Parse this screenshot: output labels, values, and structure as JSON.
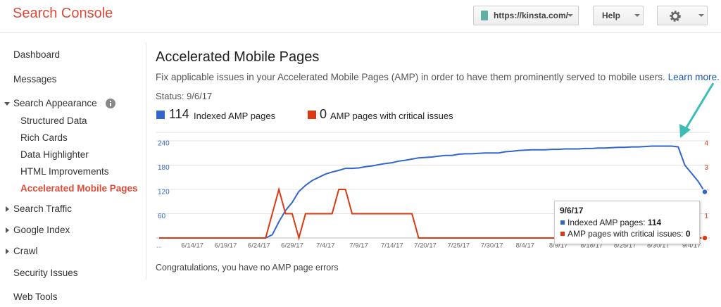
{
  "header": {
    "title": "Search Console",
    "site": "https://kinsta.com/",
    "help": "Help"
  },
  "sidebar": {
    "top": [
      "Dashboard",
      "Messages"
    ],
    "section": {
      "label": "Search Appearance",
      "items": [
        "Structured Data",
        "Rich Cards",
        "Data Highlighter",
        "HTML Improvements",
        "Accelerated Mobile Pages"
      ]
    },
    "groups": [
      "Search Traffic",
      "Google Index",
      "Crawl"
    ],
    "bottom": [
      "Security Issues",
      "Web Tools"
    ]
  },
  "main": {
    "title": "Accelerated Mobile Pages",
    "description": "Fix applicable issues in your Accelerated Mobile Pages (AMP) in order to have them prominently served to mobile users.",
    "link": "Learn more.",
    "status": "Status: 9/6/17",
    "message": "Congratulations, you have no AMP page errors"
  },
  "chart_data": {
    "type": "line",
    "categories": [
      "...",
      null,
      null,
      null,
      null,
      "6/14/17",
      null,
      null,
      null,
      null,
      "6/19/17",
      null,
      null,
      null,
      null,
      "6/24/17",
      null,
      null,
      null,
      null,
      "6/29/17",
      null,
      null,
      null,
      null,
      "7/4/17",
      null,
      null,
      null,
      null,
      "7/9/17",
      null,
      null,
      null,
      null,
      "7/14/17",
      null,
      null,
      null,
      null,
      "7/20/17",
      null,
      null,
      null,
      null,
      "7/25/17",
      null,
      null,
      null,
      null,
      "7/30/17",
      null,
      null,
      null,
      null,
      "8/4/17",
      null,
      null,
      null,
      null,
      "8/9/17",
      null,
      null,
      null,
      null,
      "8/18/17",
      null,
      null,
      null,
      null,
      "8/25/17",
      null,
      null,
      null,
      null,
      "8/30/17",
      null,
      null,
      null,
      null,
      "9/4/17",
      null,
      null
    ],
    "series": [
      {
        "name": "Indexed AMP pages",
        "color": "#3366cc",
        "values": [
          0,
          0,
          0,
          0,
          0,
          0,
          0,
          0,
          0,
          0,
          0,
          0,
          0,
          0,
          0,
          0,
          0,
          8,
          40,
          68,
          88,
          115,
          130,
          142,
          150,
          158,
          163,
          167,
          172,
          172,
          173,
          176,
          178,
          181,
          184,
          186,
          190,
          192,
          195,
          198,
          199,
          200,
          202,
          204,
          204,
          207,
          208,
          208,
          209,
          210,
          210,
          210,
          213,
          214,
          216,
          217,
          218,
          218,
          218,
          219,
          219,
          220,
          220,
          220,
          221,
          221,
          222,
          222,
          223,
          224,
          224,
          225,
          225,
          226,
          227,
          227,
          227,
          227,
          225,
          180,
          160,
          140,
          114
        ]
      },
      {
        "name": "AMP pages with critical issues",
        "color": "#dc3912",
        "axis": "y2",
        "values": [
          0,
          0,
          0,
          0,
          0,
          0,
          0,
          0,
          0,
          0,
          0,
          0,
          0,
          0,
          0,
          0,
          0,
          1,
          2,
          1,
          1,
          0,
          1,
          1,
          1,
          1,
          1,
          2,
          2,
          1,
          1,
          1,
          1,
          1,
          1,
          1,
          1,
          1,
          1,
          0,
          0,
          0,
          0,
          0,
          0,
          0,
          0,
          0,
          0,
          0,
          0,
          0,
          0,
          0,
          0,
          0,
          0,
          0,
          0,
          0,
          0,
          0,
          0,
          0,
          0,
          0,
          0,
          0,
          0,
          0,
          0,
          0,
          0,
          0,
          0,
          0,
          0,
          0,
          0,
          0,
          0,
          0,
          0
        ]
      }
    ],
    "ylim": [
      0,
      240
    ],
    "yticks": [
      60,
      120,
      180,
      240
    ],
    "y2lim": [
      0,
      4
    ],
    "y2ticks": [
      1,
      2,
      3,
      4
    ],
    "grid": true,
    "tooltip": {
      "date": "9/6/17",
      "labels": [
        "Indexed AMP pages:",
        "AMP pages with critical issues:"
      ]
    }
  }
}
